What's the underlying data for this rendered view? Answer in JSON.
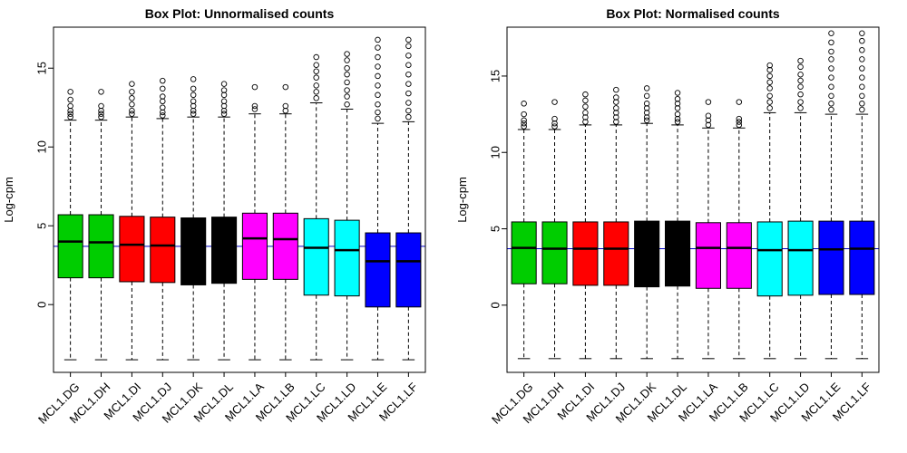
{
  "chart_data": [
    {
      "type": "box",
      "title": "Box Plot: Unnormalised counts",
      "xlabel": "",
      "ylabel": "Log-cpm",
      "ylim": [
        -4.3,
        17.6
      ],
      "yticks": [
        0,
        5,
        10,
        15
      ],
      "reference_line": 3.7,
      "reference_color": "#0000cc",
      "categories": [
        "MCL1.DG",
        "MCL1.DH",
        "MCL1.DI",
        "MCL1.DJ",
        "MCL1.DK",
        "MCL1.DL",
        "MCL1.LA",
        "MCL1.LB",
        "MCL1.LC",
        "MCL1.LD",
        "MCL1.LE",
        "MCL1.LF"
      ],
      "colors": [
        "#00cd00",
        "#00cd00",
        "#ff0000",
        "#ff0000",
        "#000000",
        "#000000",
        "#ff00ff",
        "#ff00ff",
        "#00ffff",
        "#00ffff",
        "#0000ff",
        "#0000ff"
      ],
      "boxes": [
        {
          "min": -3.5,
          "q1": 1.7,
          "median": 4.0,
          "q3": 5.7,
          "max": 11.7,
          "outliers": [
            11.9,
            12.1,
            12.3,
            12.6,
            13.0,
            13.5
          ]
        },
        {
          "min": -3.5,
          "q1": 1.7,
          "median": 3.95,
          "q3": 5.7,
          "max": 11.7,
          "outliers": [
            11.9,
            12.1,
            12.3,
            12.6,
            13.5
          ]
        },
        {
          "min": -3.5,
          "q1": 1.45,
          "median": 3.8,
          "q3": 5.6,
          "max": 11.9,
          "outliers": [
            12.1,
            12.3,
            12.7,
            13.1,
            13.5,
            14.0
          ]
        },
        {
          "min": -3.5,
          "q1": 1.4,
          "median": 3.75,
          "q3": 5.55,
          "max": 11.8,
          "outliers": [
            12.0,
            12.2,
            12.5,
            12.9,
            13.2,
            13.7,
            14.2
          ]
        },
        {
          "min": -3.5,
          "q1": 1.25,
          "median": 3.6,
          "q3": 5.5,
          "max": 11.9,
          "outliers": [
            12.1,
            12.3,
            12.6,
            12.9,
            13.3,
            13.7,
            14.3
          ]
        },
        {
          "min": -3.5,
          "q1": 1.35,
          "median": 3.6,
          "q3": 5.55,
          "max": 11.9,
          "outliers": [
            12.1,
            12.3,
            12.6,
            12.9,
            13.3,
            13.6,
            14.0
          ]
        },
        {
          "min": -3.5,
          "q1": 1.6,
          "median": 4.2,
          "q3": 5.8,
          "max": 12.1,
          "outliers": [
            12.4,
            12.6,
            13.8
          ]
        },
        {
          "min": -3.5,
          "q1": 1.6,
          "median": 4.15,
          "q3": 5.8,
          "max": 12.1,
          "outliers": [
            12.3,
            12.6,
            13.8
          ]
        },
        {
          "min": -3.5,
          "q1": 0.6,
          "median": 3.6,
          "q3": 5.45,
          "max": 12.8,
          "outliers": [
            13.1,
            13.5,
            13.9,
            14.4,
            14.8,
            15.2,
            15.7
          ]
        },
        {
          "min": -3.5,
          "q1": 0.55,
          "median": 3.45,
          "q3": 5.35,
          "max": 12.4,
          "outliers": [
            12.7,
            13.2,
            13.6,
            14.1,
            14.6,
            15.0,
            15.5,
            15.9
          ]
        },
        {
          "min": -3.5,
          "q1": -0.15,
          "median": 2.75,
          "q3": 4.55,
          "max": 11.5,
          "outliers": [
            11.8,
            12.2,
            12.7,
            13.3,
            13.9,
            14.5,
            15.1,
            15.7,
            16.3,
            16.8
          ]
        },
        {
          "min": -3.5,
          "q1": -0.15,
          "median": 2.75,
          "q3": 4.55,
          "max": 11.6,
          "outliers": [
            11.9,
            12.3,
            12.8,
            13.4,
            14.0,
            14.6,
            15.2,
            15.8,
            16.4,
            16.8
          ]
        }
      ]
    },
    {
      "type": "box",
      "title": "Box Plot: Normalised counts",
      "xlabel": "",
      "ylabel": "Log-cpm",
      "ylim": [
        -4.4,
        18.2
      ],
      "yticks": [
        0,
        5,
        10,
        15
      ],
      "reference_line": 3.7,
      "reference_color": "#0000cc",
      "categories": [
        "MCL1.DG",
        "MCL1.DH",
        "MCL1.DI",
        "MCL1.DJ",
        "MCL1.DK",
        "MCL1.DL",
        "MCL1.LA",
        "MCL1.LB",
        "MCL1.LC",
        "MCL1.LD",
        "MCL1.LE",
        "MCL1.LF"
      ],
      "colors": [
        "#00cd00",
        "#00cd00",
        "#ff0000",
        "#ff0000",
        "#000000",
        "#000000",
        "#ff00ff",
        "#ff00ff",
        "#00ffff",
        "#00ffff",
        "#0000ff",
        "#0000ff"
      ],
      "boxes": [
        {
          "min": -3.5,
          "q1": 1.4,
          "median": 3.75,
          "q3": 5.45,
          "max": 11.5,
          "outliers": [
            11.7,
            11.9,
            12.1,
            12.5,
            13.2
          ]
        },
        {
          "min": -3.5,
          "q1": 1.4,
          "median": 3.7,
          "q3": 5.45,
          "max": 11.5,
          "outliers": [
            11.7,
            11.9,
            12.2,
            13.3
          ]
        },
        {
          "min": -3.5,
          "q1": 1.3,
          "median": 3.7,
          "q3": 5.45,
          "max": 11.8,
          "outliers": [
            12.0,
            12.3,
            12.6,
            13.0,
            13.4,
            13.8
          ]
        },
        {
          "min": -3.5,
          "q1": 1.3,
          "median": 3.7,
          "q3": 5.45,
          "max": 11.8,
          "outliers": [
            12.0,
            12.3,
            12.6,
            12.9,
            13.3,
            13.6,
            14.1
          ]
        },
        {
          "min": -3.5,
          "q1": 1.2,
          "median": 3.65,
          "q3": 5.5,
          "max": 11.9,
          "outliers": [
            12.1,
            12.3,
            12.6,
            12.9,
            13.2,
            13.7,
            14.2
          ]
        },
        {
          "min": -3.5,
          "q1": 1.25,
          "median": 3.65,
          "q3": 5.5,
          "max": 11.8,
          "outliers": [
            12.0,
            12.2,
            12.5,
            12.9,
            13.2,
            13.5,
            13.9
          ]
        },
        {
          "min": -3.5,
          "q1": 1.1,
          "median": 3.75,
          "q3": 5.4,
          "max": 11.6,
          "outliers": [
            11.8,
            12.1,
            12.4,
            13.3
          ]
        },
        {
          "min": -3.5,
          "q1": 1.1,
          "median": 3.75,
          "q3": 5.4,
          "max": 11.6,
          "outliers": [
            11.8,
            12.0,
            12.2,
            13.3
          ]
        },
        {
          "min": -3.5,
          "q1": 0.6,
          "median": 3.6,
          "q3": 5.45,
          "max": 12.6,
          "outliers": [
            12.9,
            13.3,
            13.7,
            14.2,
            14.6,
            15.0,
            15.4,
            15.7
          ]
        },
        {
          "min": -3.5,
          "q1": 0.65,
          "median": 3.6,
          "q3": 5.5,
          "max": 12.6,
          "outliers": [
            12.9,
            13.3,
            13.8,
            14.3,
            14.7,
            15.1,
            15.6,
            16.0
          ]
        },
        {
          "min": -3.5,
          "q1": 0.7,
          "median": 3.65,
          "q3": 5.5,
          "max": 12.5,
          "outliers": [
            12.8,
            13.2,
            13.7,
            14.3,
            14.9,
            15.5,
            16.1,
            16.6,
            17.2,
            17.8
          ]
        },
        {
          "min": -3.5,
          "q1": 0.7,
          "median": 3.7,
          "q3": 5.5,
          "max": 12.5,
          "outliers": [
            12.8,
            13.2,
            13.7,
            14.3,
            14.9,
            15.5,
            16.1,
            16.7,
            17.3,
            17.8
          ]
        }
      ]
    }
  ]
}
